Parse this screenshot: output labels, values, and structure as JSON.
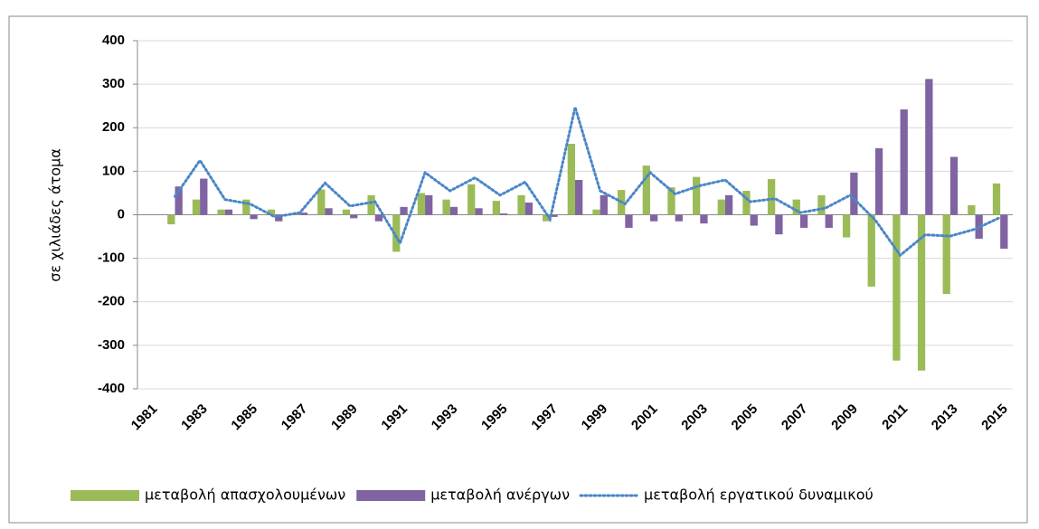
{
  "chart_data": {
    "type": "bar-line",
    "y_label": "σε χιλιάδες άτομα",
    "categories": [
      "1981",
      null,
      "1983",
      null,
      "1985",
      null,
      "1987",
      null,
      "1989",
      null,
      "1991",
      null,
      "1993",
      null,
      "1995",
      null,
      "1997",
      null,
      "1999",
      null,
      "2001",
      null,
      "2003",
      null,
      "2005",
      null,
      "2007",
      null,
      "2009",
      null,
      "2011",
      null,
      "2013",
      null,
      "2015"
    ],
    "series": [
      {
        "name": "μεταβολή απασχολουμένων",
        "type": "bar",
        "color": "#9bbb59",
        "values": [
          null,
          -22,
          35,
          12,
          35,
          12,
          3,
          58,
          12,
          45,
          -85,
          50,
          35,
          70,
          32,
          45,
          -15,
          163,
          12,
          57,
          113,
          63,
          87,
          35,
          55,
          82,
          35,
          45,
          -52,
          -165,
          -335,
          -358,
          -182,
          22,
          72
        ]
      },
      {
        "name": "μεταβολή ανέργων",
        "type": "bar",
        "color": "#8064a2",
        "values": [
          null,
          65,
          83,
          12,
          -10,
          -15,
          5,
          15,
          -8,
          -15,
          18,
          45,
          18,
          15,
          3,
          28,
          -5,
          80,
          45,
          -30,
          -15,
          -15,
          -20,
          45,
          -25,
          -45,
          -30,
          -30,
          97,
          153,
          242,
          312,
          133,
          -55,
          -78
        ]
      },
      {
        "name": "μεταβολή εργατικού δυναμικού",
        "type": "line",
        "color": "#4a86c8",
        "values": [
          null,
          42,
          125,
          35,
          25,
          -5,
          5,
          73,
          20,
          30,
          -65,
          97,
          55,
          85,
          45,
          75,
          -10,
          247,
          55,
          25,
          97,
          48,
          67,
          80,
          30,
          37,
          5,
          15,
          45,
          -12,
          -93,
          -46,
          -49,
          -33,
          -6
        ]
      }
    ],
    "ylim": [
      -400,
      400
    ],
    "yticks": [
      -400,
      -300,
      -200,
      -100,
      0,
      100,
      200,
      300,
      400
    ],
    "grid": true
  }
}
